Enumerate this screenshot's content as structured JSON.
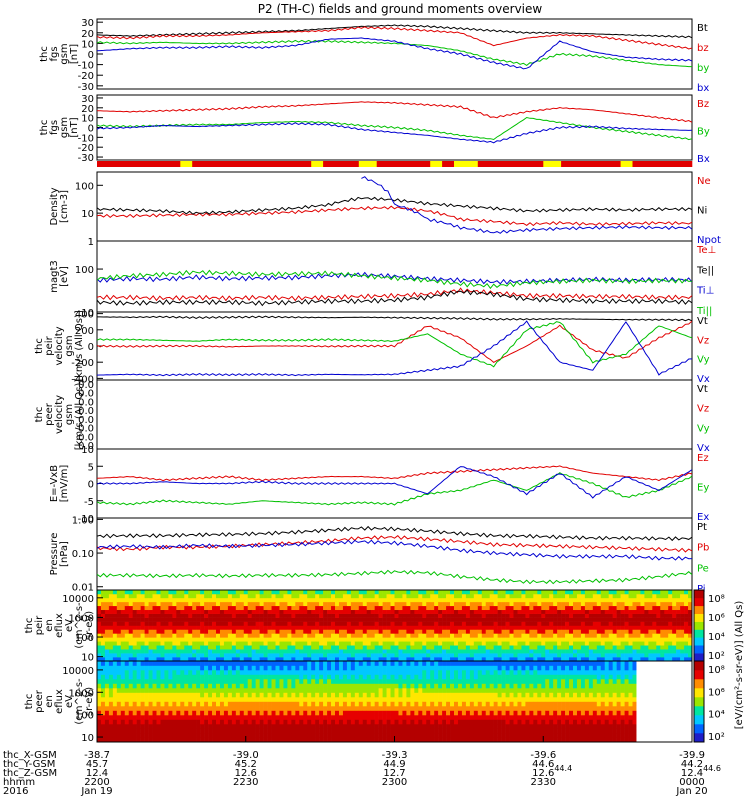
{
  "title": "P2 (TH-C) fields and ground moments overview",
  "chart_data": [
    {
      "type": "line",
      "id": "fgs_gsm_b",
      "ylabel": [
        "thc",
        "fgs",
        "gsm",
        "[nT]"
      ],
      "yticks": [
        -30,
        -20,
        -10,
        0,
        10,
        20,
        30
      ],
      "ylim": [
        -33,
        33
      ],
      "series": [
        {
          "name": "Bt",
          "color": "#000000",
          "values": [
            18,
            17,
            18,
            19,
            20,
            21,
            22,
            24,
            26,
            27,
            26,
            24,
            22,
            20,
            20,
            19,
            18,
            17,
            16
          ]
        },
        {
          "name": "bz",
          "color": "#e00000",
          "values": [
            16,
            15,
            17,
            17,
            18,
            20,
            21,
            22,
            25,
            24,
            22,
            20,
            8,
            15,
            18,
            17,
            13,
            9,
            5
          ]
        },
        {
          "name": "by",
          "color": "#00c000",
          "values": [
            11,
            10,
            11,
            10,
            10,
            11,
            12,
            12,
            11,
            10,
            8,
            3,
            -5,
            -10,
            0,
            -2,
            -6,
            -10,
            -12
          ]
        },
        {
          "name": "bx",
          "color": "#0000d0",
          "values": [
            3,
            5,
            6,
            6,
            7,
            6,
            8,
            14,
            15,
            12,
            5,
            0,
            -8,
            -14,
            12,
            2,
            -3,
            -5,
            -6
          ]
        }
      ]
    },
    {
      "type": "line",
      "id": "fgs_gsm_B",
      "ylabel": [
        "thc",
        "fgs",
        "gsm",
        "[nT]"
      ],
      "yticks": [
        -30,
        -20,
        -10,
        0,
        10,
        20,
        30
      ],
      "ylim": [
        -33,
        33
      ],
      "series": [
        {
          "name": "Bz",
          "color": "#e00000",
          "values": [
            17,
            16,
            17,
            18,
            19,
            21,
            22,
            24,
            26,
            25,
            23,
            21,
            10,
            16,
            20,
            18,
            14,
            10,
            6
          ]
        },
        {
          "name": "By",
          "color": "#00c000",
          "values": [
            2,
            1,
            2,
            3,
            3,
            5,
            6,
            5,
            2,
            0,
            -3,
            -8,
            -12,
            10,
            5,
            0,
            -4,
            -8,
            -12
          ]
        },
        {
          "name": "Bx",
          "color": "#0000d0",
          "values": [
            -1,
            0,
            2,
            1,
            2,
            3,
            4,
            3,
            -2,
            -5,
            -8,
            -12,
            -15,
            -6,
            0,
            1,
            -1,
            -2,
            -3
          ]
        }
      ]
    },
    {
      "type": "line",
      "id": "density",
      "scale": "log",
      "ylabel": [
        "Density",
        "[cm-3]"
      ],
      "yticks": [
        1,
        10,
        100
      ],
      "ylim": [
        1,
        300
      ],
      "series": [
        {
          "name": "Ne",
          "color": "#e00000",
          "values": [
            8,
            8,
            8.5,
            9,
            9,
            10,
            11,
            13,
            15,
            16,
            12,
            6,
            5,
            4,
            4.5,
            4,
            4.2,
            4.5,
            4.3
          ]
        },
        {
          "name": "Ni",
          "color": "#000000",
          "values": [
            14,
            13,
            12,
            10,
            11,
            13,
            15,
            20,
            35,
            30,
            22,
            18,
            15,
            12,
            13,
            14,
            13,
            14,
            14
          ]
        },
        {
          "name": "Npot",
          "color": "#0000d0",
          "values": [
            null,
            null,
            null,
            null,
            null,
            null,
            null,
            null,
            200,
            20,
            6,
            3,
            2,
            2.5,
            2.8,
            3,
            3.2,
            3,
            3
          ]
        }
      ]
    },
    {
      "type": "line",
      "id": "temperature",
      "scale": "log",
      "ylabel": [
        "magt3",
        "[eV]"
      ],
      "yticks": [
        10,
        100
      ],
      "ylim": [
        10,
        450
      ],
      "series": [
        {
          "name": "Te⊥",
          "color": "#e00000",
          "values": [
            22,
            22,
            21,
            22,
            21,
            22,
            21,
            22,
            23,
            24,
            26,
            32,
            28,
            24,
            24,
            23,
            23,
            22,
            22
          ]
        },
        {
          "name": "Te||",
          "color": "#000000",
          "values": [
            17,
            16,
            17,
            17,
            17,
            16,
            17,
            18,
            18,
            19,
            22,
            30,
            26,
            20,
            19,
            18,
            18,
            18,
            17
          ]
        },
        {
          "name": "Ti⊥",
          "color": "#0000d0",
          "values": [
            55,
            60,
            58,
            65,
            60,
            62,
            64,
            70,
            75,
            68,
            60,
            55,
            50,
            52,
            55,
            58,
            55,
            57,
            56
          ]
        },
        {
          "name": "Ti||",
          "color": "#00c000",
          "values": [
            60,
            70,
            75,
            85,
            80,
            75,
            78,
            80,
            70,
            62,
            55,
            45,
            40,
            48,
            52,
            55,
            52,
            54,
            53
          ]
        }
      ]
    },
    {
      "type": "line",
      "id": "peir_velocity",
      "ylabel": [
        "thc",
        "peir",
        "velocity",
        "gsm",
        "[km/s (All Qs)]"
      ],
      "yticks": [
        -400,
        -200,
        0,
        200,
        400
      ],
      "ylim": [
        -420,
        420
      ],
      "series": [
        {
          "name": "Vt",
          "color": "#000000",
          "values": [
            360,
            355,
            360,
            350,
            355,
            360,
            355,
            350,
            355,
            350,
            345,
            340,
            330,
            330,
            335,
            330,
            325,
            325,
            320
          ]
        },
        {
          "name": "Vz",
          "color": "#e00000",
          "values": [
            0,
            -5,
            0,
            0,
            -10,
            0,
            0,
            -5,
            0,
            0,
            250,
            100,
            -200,
            0,
            250,
            -50,
            -150,
            100,
            300
          ]
        },
        {
          "name": "Vy",
          "color": "#00c000",
          "values": [
            80,
            80,
            70,
            60,
            80,
            70,
            70,
            80,
            70,
            60,
            150,
            -100,
            -250,
            200,
            300,
            -200,
            -100,
            250,
            100
          ]
        },
        {
          "name": "Vx",
          "color": "#0000d0",
          "values": [
            -360,
            -350,
            -360,
            -350,
            -355,
            -350,
            -360,
            -350,
            -355,
            -350,
            -300,
            -250,
            0,
            300,
            -200,
            -300,
            300,
            -350,
            -150
          ]
        }
      ]
    },
    {
      "type": "line",
      "id": "peer_velocity",
      "ylabel": [
        "thc",
        "peer",
        "velocity",
        "gsm",
        "[km/s (All Qs)]"
      ],
      "yticks": [],
      "ylim": [
        0,
        1
      ],
      "tick_label_rows": [
        "0.0",
        "0.0",
        "0.0",
        "0.0",
        "0.0",
        "0.0",
        "0.0",
        "0.0"
      ],
      "series": [
        {
          "name": "Vt",
          "color": "#000000",
          "values": []
        },
        {
          "name": "Vz",
          "color": "#e00000",
          "values": []
        },
        {
          "name": "Vy",
          "color": "#00c000",
          "values": []
        },
        {
          "name": "Vx",
          "color": "#0000d0",
          "values": []
        }
      ]
    },
    {
      "type": "line",
      "id": "e_field",
      "ylabel": [
        "E=-VxB",
        "[mV/m]"
      ],
      "yticks": [
        -10,
        -5,
        0,
        5,
        10
      ],
      "ylim": [
        -10,
        10
      ],
      "series": [
        {
          "name": "Ez",
          "color": "#e00000",
          "values": [
            1.5,
            2,
            1,
            1.5,
            2,
            1,
            1.5,
            2,
            2,
            1.5,
            3,
            3.5,
            4,
            4.5,
            5,
            3,
            2,
            1,
            3
          ]
        },
        {
          "name": "Ey",
          "color": "#00c000",
          "values": [
            -5.5,
            -6,
            -5,
            -5.5,
            -6,
            -5,
            -5.5,
            -6,
            -5.5,
            -6,
            -3,
            -2,
            1,
            -2,
            3,
            0,
            -4,
            -2,
            2
          ]
        },
        {
          "name": "Ex",
          "color": "#0000d0",
          "values": [
            0,
            0,
            0.5,
            0,
            0,
            0.5,
            0,
            0,
            0,
            0,
            -3,
            5,
            2,
            -3,
            3,
            -4,
            2,
            -2,
            4
          ]
        }
      ]
    },
    {
      "type": "line",
      "id": "pressure",
      "scale": "log",
      "ylabel": [
        "Pressure",
        "[nPa]"
      ],
      "yticks": [
        0.01,
        0.1,
        1.0
      ],
      "ytick_labels": [
        "0.01",
        "0.10",
        "1.00"
      ],
      "ylim": [
        0.008,
        1.1
      ],
      "series": [
        {
          "name": "Pt",
          "color": "#000000",
          "values": [
            0.32,
            0.33,
            0.33,
            0.35,
            0.36,
            0.38,
            0.42,
            0.48,
            0.55,
            0.52,
            0.45,
            0.38,
            0.33,
            0.32,
            0.3,
            0.28,
            0.28,
            0.27,
            0.27
          ]
        },
        {
          "name": "Pb",
          "color": "#e00000",
          "values": [
            0.14,
            0.13,
            0.15,
            0.15,
            0.16,
            0.18,
            0.2,
            0.23,
            0.28,
            0.3,
            0.26,
            0.22,
            0.18,
            0.17,
            0.16,
            0.15,
            0.14,
            0.13,
            0.12
          ]
        },
        {
          "name": "Pe",
          "color": "#00c000",
          "values": [
            0.022,
            0.022,
            0.021,
            0.022,
            0.021,
            0.022,
            0.022,
            0.023,
            0.025,
            0.028,
            0.026,
            0.02,
            0.016,
            0.014,
            0.014,
            0.015,
            0.016,
            0.02,
            0.026
          ]
        },
        {
          "name": "Pi",
          "color": "#0000d0",
          "values": [
            0.15,
            0.16,
            0.15,
            0.17,
            0.16,
            0.17,
            0.18,
            0.2,
            0.22,
            0.2,
            0.16,
            0.12,
            0.1,
            0.09,
            0.08,
            0.08,
            0.08,
            0.07,
            0.07
          ]
        }
      ]
    },
    {
      "type": "heatmap",
      "id": "peir_en_eflux",
      "ylabel": [
        "thc",
        "peir",
        "en",
        "eflux",
        "eV",
        "(cm^2-s-",
        "sr-eV)"
      ],
      "scale": "log",
      "yticks": [
        10,
        100,
        1000,
        10000
      ],
      "ytick_labels": [
        "10",
        "100",
        "1000",
        "10000"
      ],
      "ylim": [
        6,
        25000
      ],
      "peak_energy": 800
    },
    {
      "type": "heatmap",
      "id": "peer_en_eflux",
      "ylabel": [
        "thc",
        "peer",
        "en",
        "eflux",
        "eV",
        "(cm^2-s-",
        "sr-eV)"
      ],
      "scale": "log",
      "yticks": [
        10,
        100,
        1000,
        10000
      ],
      "ytick_labels": [
        "10",
        "100",
        "1000",
        "10000"
      ],
      "ylim": [
        6,
        25000
      ],
      "peak_energy": 20
    }
  ],
  "mode_bar": {
    "segments": [
      "#e00000",
      "#ffff00",
      "#e00000",
      "#ffff00",
      "#e00000",
      "#ffff00",
      "#e00000",
      "#ffff00",
      "#e00000",
      "#ffff00",
      "#e00000",
      "#ffff00",
      "#e00000",
      "#ffff00",
      "#e00000"
    ],
    "fractions": [
      0.14,
      0.02,
      0.2,
      0.02,
      0.06,
      0.03,
      0.09,
      0.02,
      0.02,
      0.04,
      0.11,
      0.03,
      0.1,
      0.02,
      0.1
    ]
  },
  "colorbar": {
    "tick_labels": [
      "10⁸",
      "10⁶",
      "10⁴",
      "10²"
    ],
    "tick_labels_2": [
      "10⁸",
      "10⁶",
      "10⁴",
      "10²"
    ],
    "label": "[eV/(cm²-s-sr-eV)] (All Qs)"
  },
  "xaxis": {
    "row_labels": [
      "thc_X-GSM",
      "thc_Y-GSM",
      "thc_Z-GSM",
      "hhmm",
      "2016"
    ],
    "ticks": [
      {
        "values": [
          "-38.7",
          "45.7",
          "12.4",
          "2200",
          "Jan 19"
        ]
      },
      {
        "values": [
          "-39.0",
          "45.2",
          "12.6",
          "2230",
          ""
        ]
      },
      {
        "values": [
          "-39.3",
          "44.9",
          "12.7",
          "2300",
          ""
        ]
      },
      {
        "values": [
          "-39.6",
          "44.6",
          "12.6",
          "2330",
          ""
        ]
      },
      {
        "values": [
          "-39.9",
          "44.2",
          "12.4",
          "0000",
          "Jan 20"
        ]
      }
    ],
    "extra_row": [
      "44.4",
      "44.6"
    ]
  }
}
